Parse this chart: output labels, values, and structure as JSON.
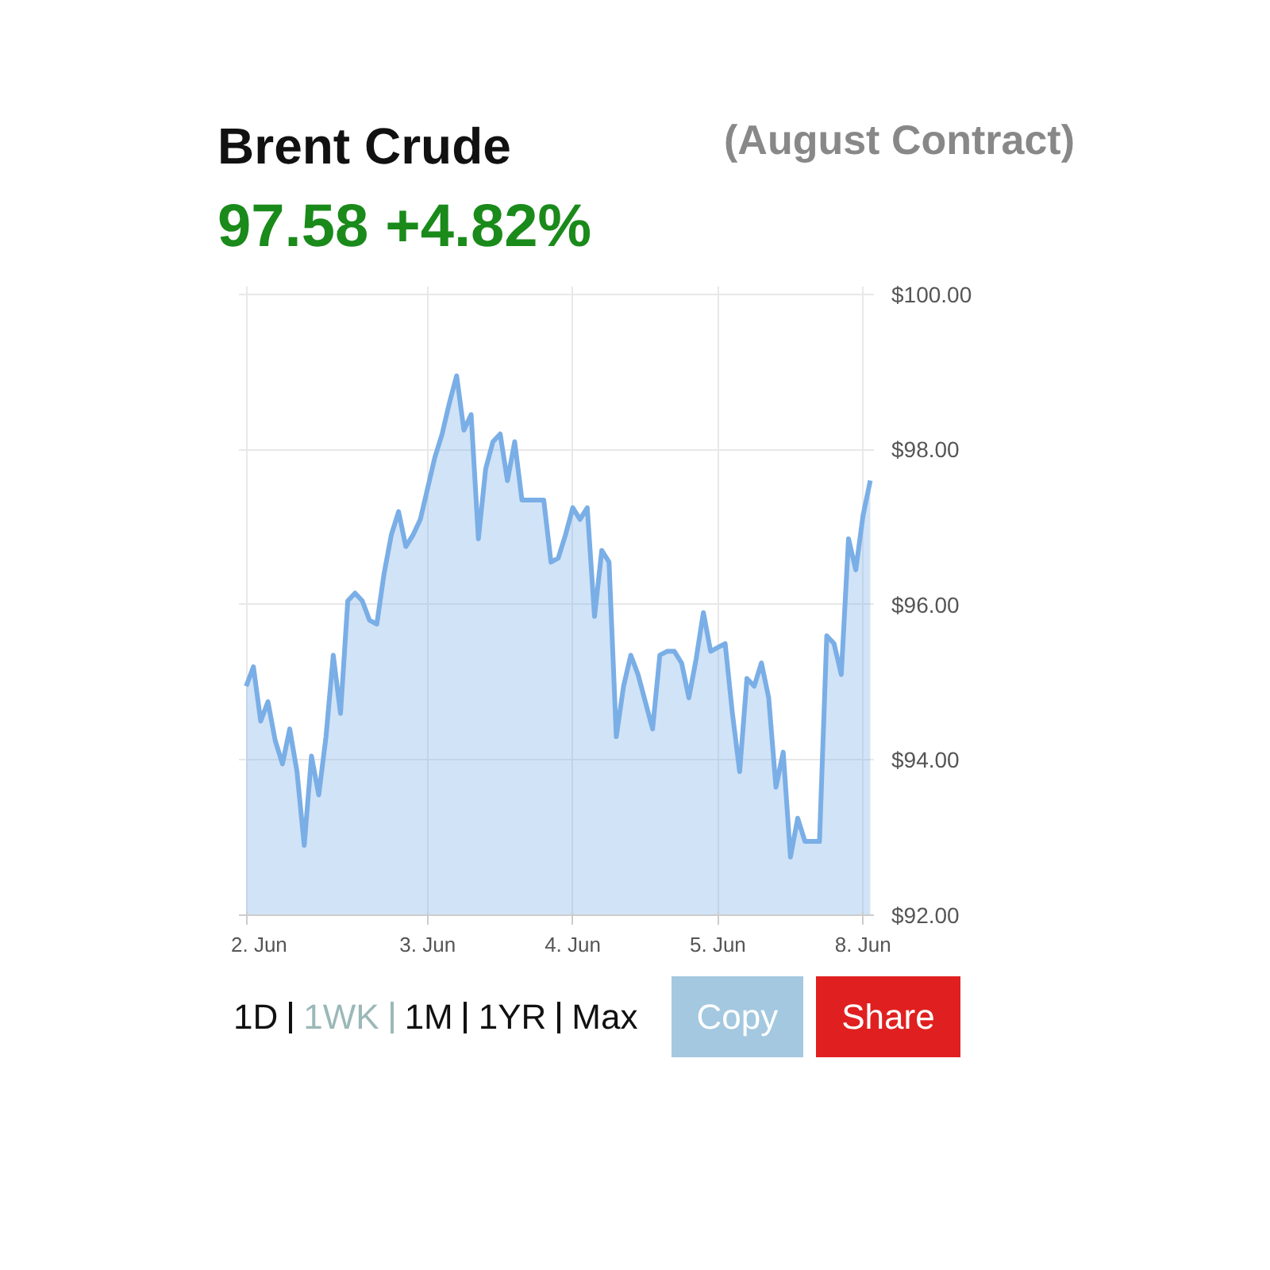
{
  "chart_data": {
    "type": "area",
    "title": "Brent Crude",
    "subtitle": "97.58 +4.82%",
    "annotations": [
      "(August Contract)",
      "1D",
      "1WK",
      "1M",
      "1YR",
      "Max",
      "Copy",
      "Share"
    ],
    "categories": [
      "2. Jun",
      null,
      null,
      null,
      null,
      null,
      null,
      null,
      null,
      null,
      null,
      null,
      null,
      null,
      null,
      null,
      null,
      null,
      null,
      null,
      null,
      null,
      null,
      null,
      null,
      "3. Jun",
      null,
      null,
      null,
      null,
      null,
      null,
      null,
      null,
      null,
      null,
      null,
      null,
      null,
      null,
      null,
      null,
      null,
      null,
      null,
      "4. Jun",
      null,
      null,
      null,
      null,
      null,
      null,
      null,
      null,
      null,
      null,
      null,
      null,
      null,
      null,
      null,
      null,
      null,
      null,
      null,
      "5. Jun",
      null,
      null,
      null,
      null,
      null,
      null,
      null,
      null,
      null,
      null,
      null,
      null,
      null,
      null,
      null,
      null,
      null,
      null,
      null,
      "8. Jun",
      null
    ],
    "series": [
      {
        "color": "#7aaee6",
        "values": [
          94.95,
          95.2,
          94.5,
          94.75,
          94.25,
          93.95,
          94.4,
          93.85,
          92.9,
          94.05,
          93.55,
          94.3,
          95.35,
          94.6,
          96.05,
          96.15,
          96.05,
          95.8,
          95.75,
          96.4,
          96.9,
          97.2,
          96.75,
          96.9,
          97.1,
          97.5,
          97.9,
          98.2,
          98.6,
          98.95,
          98.25,
          98.45,
          96.85,
          97.75,
          98.1,
          98.2,
          97.6,
          98.1,
          97.35,
          97.35,
          97.35,
          97.35,
          96.55,
          96.6,
          96.9,
          97.25,
          97.1,
          97.25,
          95.85,
          96.7,
          96.55,
          94.3,
          94.95,
          95.35,
          95.1,
          94.75,
          94.4,
          95.35,
          95.4,
          95.4,
          95.25,
          94.8,
          95.3,
          95.9,
          95.4,
          95.45,
          95.5,
          94.6,
          93.85,
          95.05,
          94.95,
          95.25,
          94.8,
          93.65,
          94.1,
          92.75,
          93.25,
          92.95,
          92.95,
          92.95,
          95.6,
          95.5,
          95.1,
          96.85,
          96.45,
          97.15,
          97.6
        ]
      }
    ],
    "ylim": [
      92,
      100.1
    ],
    "yticks": [
      {
        "value": 92,
        "label": "$92.00"
      },
      {
        "value": 94,
        "label": "$94.00"
      },
      {
        "value": 96,
        "label": "$96.00"
      },
      {
        "value": 98,
        "label": "$98.00"
      },
      {
        "value": 100,
        "label": "$100.00"
      }
    ],
    "grid": true
  }
}
